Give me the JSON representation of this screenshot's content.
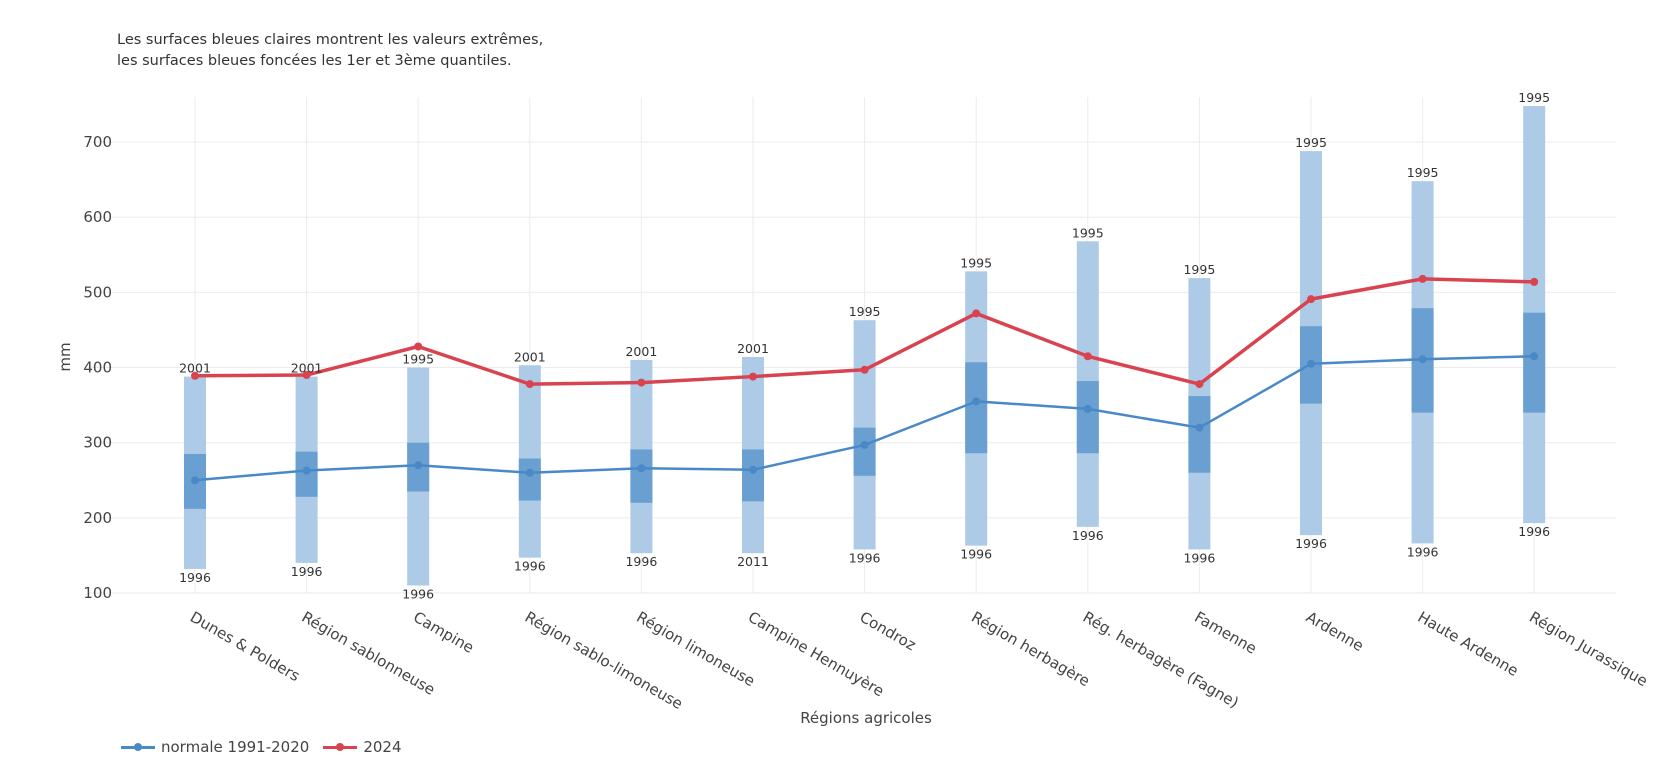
{
  "subtitle": {
    "line1": "Les surfaces bleues claires montrent les valeurs extrêmes,",
    "line2": "les surfaces bleues foncées les 1er et 3ème quantiles."
  },
  "colors": {
    "normal": "#4a89c8",
    "year2024": "#d9434f",
    "range_light": "#adcbe6",
    "range_dark": "#6a9fd2",
    "grid": "#ebebeb"
  },
  "legend": {
    "items": [
      {
        "label": "normale 1991-2020",
        "color": "#4a89c8"
      },
      {
        "label": "2024",
        "color": "#d9434f"
      }
    ]
  },
  "chart_data": {
    "type": "line",
    "xlabel": "Régions agricoles",
    "ylabel": "mm",
    "ylim": [
      100,
      760
    ],
    "yticks": [
      100,
      200,
      300,
      400,
      500,
      600,
      700
    ],
    "grid": true,
    "legend_position": "bottom-left",
    "categories": [
      "Dunes & Polders",
      "Région sablonneuse",
      "Campine",
      "Région sablo-limoneuse",
      "Région limoneuse",
      "Campine Hennuyère",
      "Condroz",
      "Région herbagère",
      "Rég. herbagère (Fagne)",
      "Famenne",
      "Ardenne",
      "Haute Ardenne",
      "Région Jurassique"
    ],
    "series": [
      {
        "name": "normale 1991-2020",
        "values": [
          250,
          263,
          270,
          260,
          266,
          264,
          297,
          355,
          345,
          320,
          405,
          411,
          415
        ]
      },
      {
        "name": "2024",
        "values": [
          389,
          390,
          428,
          378,
          380,
          388,
          397,
          472,
          415,
          378,
          491,
          518,
          514
        ]
      }
    ],
    "extremes": {
      "min": [
        132,
        140,
        110,
        147,
        153,
        153,
        158,
        163,
        188,
        158,
        177,
        166,
        193
      ],
      "max": [
        388,
        388,
        400,
        403,
        410,
        414,
        463,
        528,
        568,
        519,
        688,
        648,
        748
      ],
      "min_year": [
        "1996",
        "1996",
        "1996",
        "1996",
        "1996",
        "2011",
        "1996",
        "1996",
        "1996",
        "1996",
        "1996",
        "1996",
        "1996"
      ],
      "max_year": [
        "2001",
        "2001",
        "1995",
        "2001",
        "2001",
        "2001",
        "1995",
        "1995",
        "1995",
        "1995",
        "1995",
        "1995",
        "1995"
      ]
    },
    "quartiles": {
      "q1": [
        212,
        228,
        235,
        223,
        220,
        222,
        256,
        286,
        286,
        260,
        352,
        340,
        340
      ],
      "q3": [
        285,
        288,
        300,
        279,
        291,
        291,
        320,
        407,
        382,
        362,
        455,
        479,
        473
      ]
    }
  }
}
